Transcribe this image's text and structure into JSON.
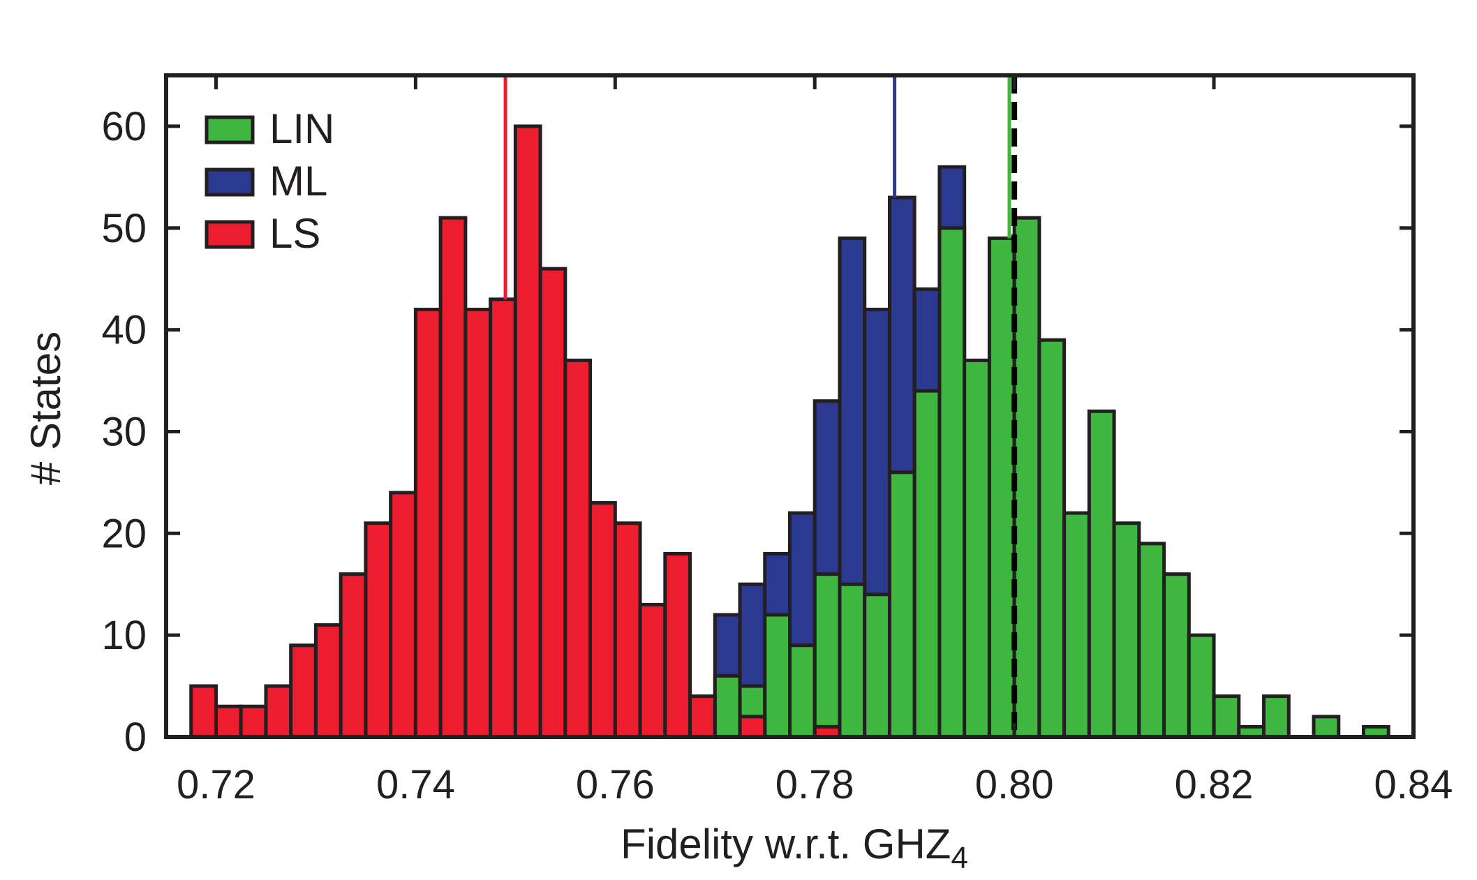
{
  "chart_data": {
    "type": "bar",
    "xlabel": "Fidelity w.r.t. GHZ",
    "xlabel_subscript": "4",
    "ylabel": "# States",
    "xlim": [
      0.715,
      0.84
    ],
    "ylim": [
      0,
      65
    ],
    "bin_width": 0.0025,
    "x_ticks": [
      0.72,
      0.74,
      0.76,
      0.78,
      0.8,
      0.82,
      0.84
    ],
    "x_tick_labels": [
      "0.72",
      "0.74",
      "0.76",
      "0.78",
      "0.80",
      "0.82",
      "0.84"
    ],
    "y_ticks": [
      0,
      10,
      20,
      30,
      40,
      50,
      60
    ],
    "y_tick_labels": [
      "0",
      "10",
      "20",
      "30",
      "40",
      "50",
      "60"
    ],
    "legend_position": "top-left",
    "series": [
      {
        "name": "ML",
        "color": "#2b3990",
        "bins": [
          {
            "x": 0.77125,
            "y": 12
          },
          {
            "x": 0.77375,
            "y": 15
          },
          {
            "x": 0.77625,
            "y": 18
          },
          {
            "x": 0.77875,
            "y": 22
          },
          {
            "x": 0.78125,
            "y": 33
          },
          {
            "x": 0.78375,
            "y": 49
          },
          {
            "x": 0.78625,
            "y": 42
          },
          {
            "x": 0.78875,
            "y": 53
          },
          {
            "x": 0.79125,
            "y": 44
          },
          {
            "x": 0.79375,
            "y": 56
          }
        ],
        "mean": 0.788
      },
      {
        "name": "LIN",
        "color": "#3fb63f",
        "bins": [
          {
            "x": 0.77125,
            "y": 6
          },
          {
            "x": 0.77375,
            "y": 5
          },
          {
            "x": 0.77625,
            "y": 12
          },
          {
            "x": 0.77875,
            "y": 9
          },
          {
            "x": 0.78125,
            "y": 16
          },
          {
            "x": 0.78375,
            "y": 15
          },
          {
            "x": 0.78625,
            "y": 14
          },
          {
            "x": 0.78875,
            "y": 26
          },
          {
            "x": 0.79125,
            "y": 34
          },
          {
            "x": 0.79375,
            "y": 50
          },
          {
            "x": 0.79625,
            "y": 37
          },
          {
            "x": 0.79875,
            "y": 49
          },
          {
            "x": 0.80125,
            "y": 51
          },
          {
            "x": 0.80375,
            "y": 39
          },
          {
            "x": 0.80625,
            "y": 22
          },
          {
            "x": 0.80875,
            "y": 32
          },
          {
            "x": 0.81125,
            "y": 21
          },
          {
            "x": 0.81375,
            "y": 19
          },
          {
            "x": 0.81625,
            "y": 16
          },
          {
            "x": 0.81875,
            "y": 10
          },
          {
            "x": 0.82125,
            "y": 4
          },
          {
            "x": 0.82375,
            "y": 1
          },
          {
            "x": 0.82625,
            "y": 4
          },
          {
            "x": 0.83125,
            "y": 2
          },
          {
            "x": 0.83625,
            "y": 1
          }
        ],
        "mean": 0.7995
      },
      {
        "name": "LS",
        "color": "#ed1c2e",
        "bins": [
          {
            "x": 0.71875,
            "y": 5
          },
          {
            "x": 0.72125,
            "y": 3
          },
          {
            "x": 0.72375,
            "y": 3
          },
          {
            "x": 0.72625,
            "y": 5
          },
          {
            "x": 0.72875,
            "y": 9
          },
          {
            "x": 0.73125,
            "y": 11
          },
          {
            "x": 0.73375,
            "y": 16
          },
          {
            "x": 0.73625,
            "y": 21
          },
          {
            "x": 0.73875,
            "y": 24
          },
          {
            "x": 0.74125,
            "y": 42
          },
          {
            "x": 0.74375,
            "y": 51
          },
          {
            "x": 0.74625,
            "y": 42
          },
          {
            "x": 0.74875,
            "y": 43
          },
          {
            "x": 0.75125,
            "y": 60
          },
          {
            "x": 0.75375,
            "y": 46
          },
          {
            "x": 0.75625,
            "y": 37
          },
          {
            "x": 0.75875,
            "y": 23
          },
          {
            "x": 0.76125,
            "y": 21
          },
          {
            "x": 0.76375,
            "y": 13
          },
          {
            "x": 0.76625,
            "y": 18
          },
          {
            "x": 0.76875,
            "y": 4
          },
          {
            "x": 0.77375,
            "y": 2
          },
          {
            "x": 0.78125,
            "y": 1
          }
        ],
        "mean": 0.749
      }
    ],
    "reference_line": {
      "x": 0.8,
      "style": "dashed",
      "color": "#000000"
    },
    "legend_order": [
      "LIN",
      "ML",
      "LS"
    ]
  }
}
